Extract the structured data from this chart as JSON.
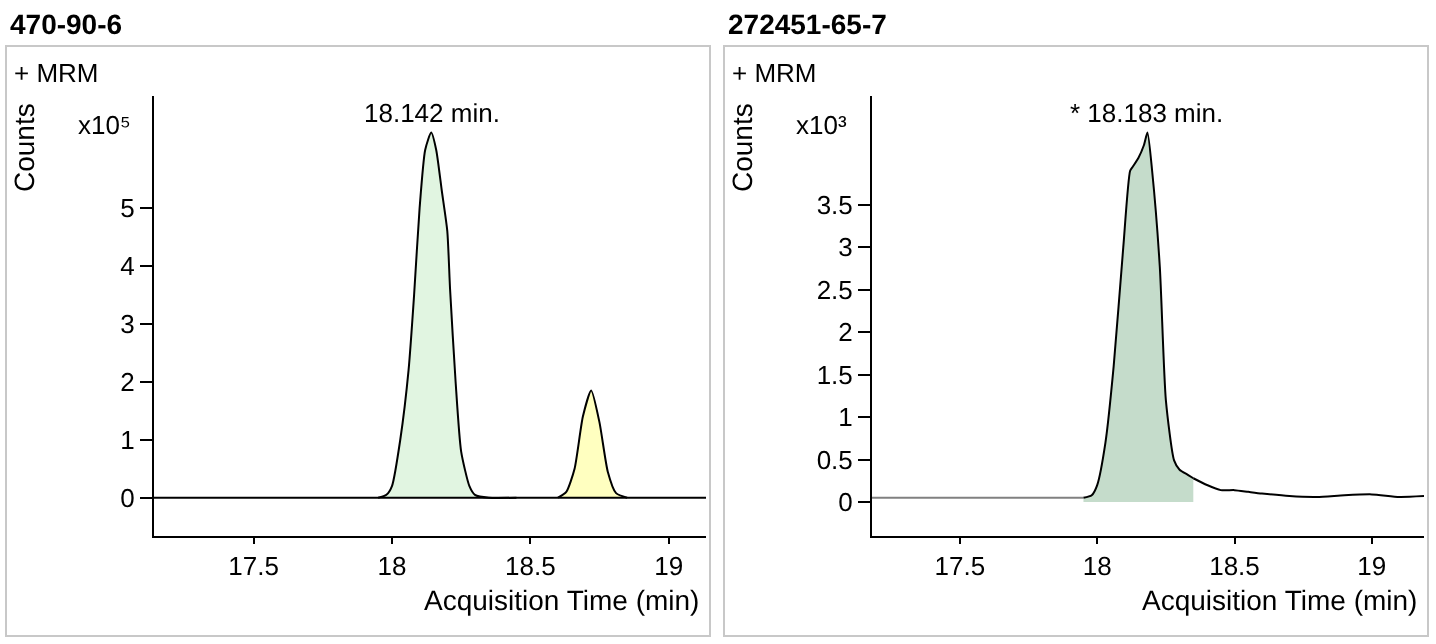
{
  "chart_data": [
    {
      "type": "area",
      "title": "470-90-6",
      "xlabel": "Acquisition Time (min)",
      "ylabel": "Counts",
      "annotations": [
        "+ MRM",
        "x10⁵",
        {
          "text": "18.142 min.",
          "x": 18.142,
          "y": 6.3
        }
      ],
      "xlim": [
        17.14,
        19.135
      ],
      "ylim": [
        -0.66,
        6.93
      ],
      "xticks": [
        17.5,
        18,
        18.5,
        19
      ],
      "yticks": [
        0,
        1,
        2,
        3,
        4,
        5
      ],
      "ref_lines": [
        {
          "axis": "y",
          "value": 0,
          "color": "#000000"
        }
      ],
      "series": [
        {
          "color": "#e1f5e1",
          "x": [
            17.95,
            17.98,
            18.0,
            18.03,
            18.06,
            18.08,
            18.1,
            18.12,
            18.142,
            18.16,
            18.18,
            18.2,
            18.21,
            18.23,
            18.25,
            18.28,
            18.3,
            18.35,
            18.45
          ],
          "values": [
            0,
            0.05,
            0.2,
            1.0,
            2.2,
            3.5,
            5.0,
            6.0,
            6.3,
            6.0,
            5.3,
            4.6,
            3.6,
            2.0,
            0.8,
            0.2,
            0.05,
            0,
            0
          ]
        },
        {
          "color": "#ffffc0",
          "x": [
            18.6,
            18.63,
            18.66,
            18.69,
            18.72,
            18.75,
            18.78,
            18.81,
            18.85
          ],
          "values": [
            0,
            0.1,
            0.5,
            1.4,
            1.85,
            1.3,
            0.45,
            0.08,
            0
          ]
        }
      ]
    },
    {
      "type": "area",
      "title": "272451-65-7",
      "xlabel": "Acquisition Time (min)",
      "ylabel": "Counts",
      "annotations": [
        "+ MRM",
        "x10³",
        {
          "text": "* 18.183 min.",
          "x": 18.183,
          "y": 4.35
        }
      ],
      "xlim": [
        17.18,
        19.19
      ],
      "ylim": [
        -0.4,
        4.78
      ],
      "xticks": [
        17.5,
        18,
        18.5,
        19
      ],
      "yticks": [
        0,
        0.5,
        1,
        1.5,
        2,
        2.5,
        3,
        3.5
      ],
      "series": [
        {
          "type": "line",
          "color": "#808080",
          "x": [
            17.18,
            17.95
          ],
          "values": [
            0.05,
            0.05
          ]
        },
        {
          "color": "#c5dccb",
          "x": [
            17.95,
            17.98,
            18.0,
            18.03,
            18.06,
            18.095,
            18.12,
            18.13,
            18.15,
            18.17,
            18.183,
            18.2,
            18.228,
            18.25,
            18.28,
            18.3,
            18.33,
            18.35
          ],
          "values": [
            0.05,
            0.08,
            0.2,
            0.7,
            1.6,
            3.0,
            3.9,
            3.95,
            4.05,
            4.2,
            4.35,
            3.9,
            2.77,
            1.2,
            0.49,
            0.38,
            0.32,
            0.28
          ]
        },
        {
          "type": "line",
          "color": "#000000",
          "x": [
            18.35,
            18.4,
            18.45,
            18.5,
            18.55,
            18.6,
            18.7,
            18.8,
            18.9,
            19.0,
            19.1,
            19.19
          ],
          "values": [
            0.28,
            0.2,
            0.14,
            0.14,
            0.12,
            0.1,
            0.07,
            0.06,
            0.08,
            0.09,
            0.06,
            0.07
          ]
        }
      ]
    }
  ]
}
